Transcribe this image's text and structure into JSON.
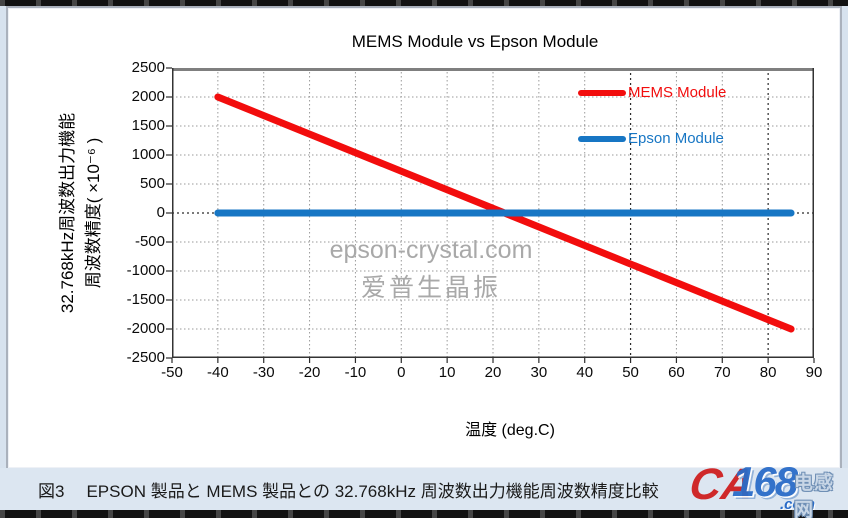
{
  "chart": {
    "title": "MEMS Module vs Epson Module",
    "y_axis_title_line1": "32.768kHz周波数出力機能",
    "y_axis_title_line2": "周波数精度( ×10⁻⁶ )",
    "x_axis_title": "温度 (deg.C)"
  },
  "legend": [
    {
      "label": "MEMS Module",
      "color": "#f20d0d"
    },
    {
      "label": "Epson Module",
      "color": "#1776c4"
    }
  ],
  "watermark": {
    "line1": "epson-crystal.com",
    "line2": "爱普生晶振"
  },
  "caption": {
    "figure_label": "図3",
    "text": "EPSON 製品と MEMS 製品との 32.768kHz 周波数出力機能周波数精度比較"
  },
  "logo": {
    "part_ca": "CA",
    "part_168": "168",
    "part_com": ".com",
    "part_cn": "电感网"
  },
  "chart_data": {
    "type": "line",
    "title": "MEMS Module vs Epson Module",
    "xlabel": "温度 (deg.C)",
    "ylabel": "32.768kHz周波数出力機能 周波数精度( ×10⁻⁶ )",
    "xlim": [
      -50,
      90
    ],
    "ylim": [
      -2500,
      2500
    ],
    "x_ticks": [
      -50,
      -40,
      -30,
      -20,
      -10,
      0,
      10,
      20,
      30,
      40,
      50,
      60,
      70,
      80,
      90
    ],
    "y_ticks": [
      2500,
      2000,
      1500,
      1000,
      500,
      0,
      -500,
      -1000,
      -1500,
      -2000,
      -2500
    ],
    "grid": true,
    "emphasized_gridlines": {
      "x": [
        50,
        80
      ],
      "y": [
        0
      ]
    },
    "legend_position": "top-right-inside",
    "series": [
      {
        "name": "MEMS Module",
        "color": "#f20d0d",
        "points": [
          [
            -40,
            2000
          ],
          [
            85,
            -2000
          ]
        ]
      },
      {
        "name": "Epson Module",
        "color": "#1776c4",
        "points": [
          [
            -40,
            0
          ],
          [
            85,
            0
          ]
        ]
      }
    ]
  }
}
